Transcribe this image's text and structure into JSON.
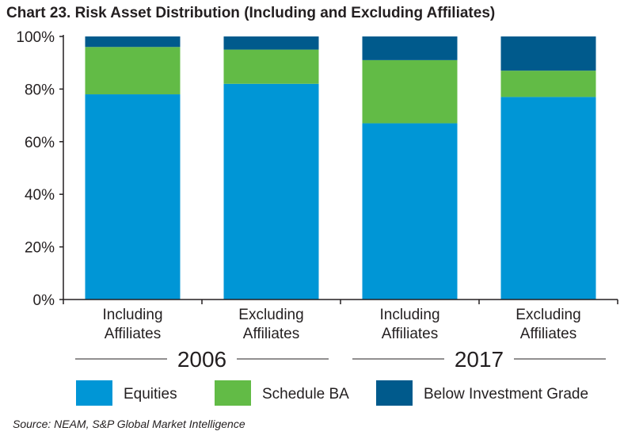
{
  "title": "Chart 23. Risk Asset Distribution (Including and Excluding Affiliates)",
  "source": "Source: NEAM, S&P Global Market Intelligence",
  "chart_data": {
    "type": "bar",
    "stacked": true,
    "categories": [
      {
        "line1": "Including",
        "line2": "Affiliates",
        "group": "2006"
      },
      {
        "line1": "Excluding",
        "line2": "Affiliates",
        "group": "2006"
      },
      {
        "line1": "Including",
        "line2": "Affiliates",
        "group": "2017"
      },
      {
        "line1": "Excluding",
        "line2": "Affiliates",
        "group": "2017"
      }
    ],
    "groups": [
      "2006",
      "2017"
    ],
    "series": [
      {
        "name": "Equities",
        "color": "#0096d6",
        "values": [
          78,
          82,
          67,
          77
        ]
      },
      {
        "name": "Schedule BA",
        "color": "#62bb46",
        "values": [
          18,
          13,
          24,
          10
        ]
      },
      {
        "name": "Below Investment Grade",
        "color": "#005a8c",
        "values": [
          4,
          5,
          9,
          13
        ]
      }
    ],
    "yticks": [
      "0%",
      "20%",
      "40%",
      "60%",
      "80%",
      "100%"
    ],
    "ylim": [
      0,
      100
    ],
    "legend_position": "bottom"
  }
}
